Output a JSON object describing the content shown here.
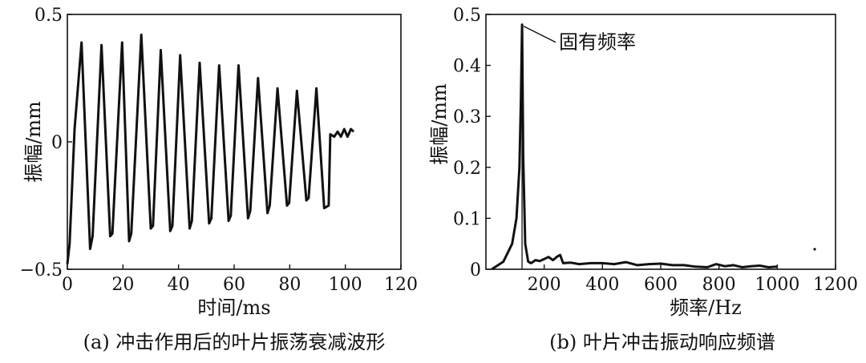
{
  "chart_data": [
    {
      "type": "line",
      "caption": "(a) 冲击作用后的叶片振荡衰减波形",
      "xlabel": "时间/ms",
      "ylabel": "振幅/mm",
      "xlim": [
        0,
        120
      ],
      "ylim": [
        -0.5,
        0.5
      ],
      "xticks": [
        0,
        20,
        40,
        60,
        80,
        100,
        120
      ],
      "yticks": [
        -0.5,
        0,
        0.5
      ],
      "ytick_labels": [
        "−0.5",
        "0",
        "0.5"
      ],
      "grid": false,
      "series": [
        {
          "x": [
            0,
            0.8,
            2.6,
            5.1,
            8.2,
            9.1,
            12.3,
            15.4,
            16.2,
            19.7,
            22.2,
            23.0,
            26.6,
            30.0,
            30.8,
            33.6,
            37.0,
            37.8,
            40.6,
            44.0,
            44.8,
            47.6,
            51.0,
            51.8,
            54.6,
            58.0,
            58.8,
            61.6,
            65.0,
            65.8,
            68.6,
            72.0,
            72.8,
            75.6,
            79.0,
            79.8,
            82.6,
            86.0,
            86.8,
            89.6,
            92.4,
            94.0,
            94.6,
            96.0,
            97.2,
            98.4,
            99.6,
            100.8,
            102.0,
            103.0
          ],
          "y": [
            -0.48,
            -0.4,
            0.05,
            0.39,
            -0.42,
            -0.37,
            0.38,
            -0.37,
            -0.36,
            0.39,
            -0.39,
            -0.36,
            0.42,
            -0.34,
            -0.33,
            0.36,
            -0.35,
            -0.33,
            0.34,
            -0.34,
            -0.31,
            0.31,
            -0.32,
            -0.3,
            0.3,
            -0.31,
            -0.29,
            0.3,
            -0.3,
            -0.27,
            0.25,
            -0.28,
            -0.25,
            0.21,
            -0.25,
            -0.24,
            0.2,
            -0.23,
            -0.22,
            0.21,
            -0.26,
            -0.25,
            0.03,
            0.02,
            0.04,
            0.02,
            0.05,
            0.02,
            0.05,
            0.04
          ]
        }
      ]
    },
    {
      "type": "line",
      "caption": "(b) 叶片冲击振动响应频谱",
      "xlabel": "频率/Hz",
      "ylabel": "振幅/mm",
      "xlim": [
        0,
        1200
      ],
      "ylim": [
        0,
        0.5
      ],
      "xticks": [
        200,
        400,
        600,
        800,
        1000,
        1200
      ],
      "yticks": [
        0,
        0.1,
        0.2,
        0.3,
        0.4,
        0.5
      ],
      "ytick_labels": [
        "0",
        "0.1",
        "0.2",
        "0.3",
        "0.4",
        "0.5"
      ],
      "grid": false,
      "annotation": {
        "text": "固有频率",
        "x": 124,
        "y": 0.48
      },
      "series": [
        {
          "x": [
            20,
            60,
            90,
            105,
            115,
            120,
            124,
            128,
            135,
            145,
            155,
            170,
            185,
            200,
            215,
            230,
            245,
            255,
            265,
            290,
            320,
            360,
            400,
            440,
            480,
            520,
            560,
            600,
            640,
            680,
            720,
            760,
            790,
            820,
            850,
            880,
            910,
            940,
            970,
            1000
          ],
          "y": [
            0.0,
            0.015,
            0.05,
            0.1,
            0.2,
            0.33,
            0.48,
            0.22,
            0.05,
            0.015,
            0.012,
            0.018,
            0.016,
            0.02,
            0.024,
            0.018,
            0.025,
            0.028,
            0.012,
            0.013,
            0.01,
            0.012,
            0.012,
            0.01,
            0.014,
            0.008,
            0.01,
            0.011,
            0.008,
            0.008,
            0.005,
            0.004,
            0.01,
            0.006,
            0.008,
            0.004,
            0.006,
            0.007,
            0.004,
            0.005
          ]
        }
      ]
    }
  ]
}
